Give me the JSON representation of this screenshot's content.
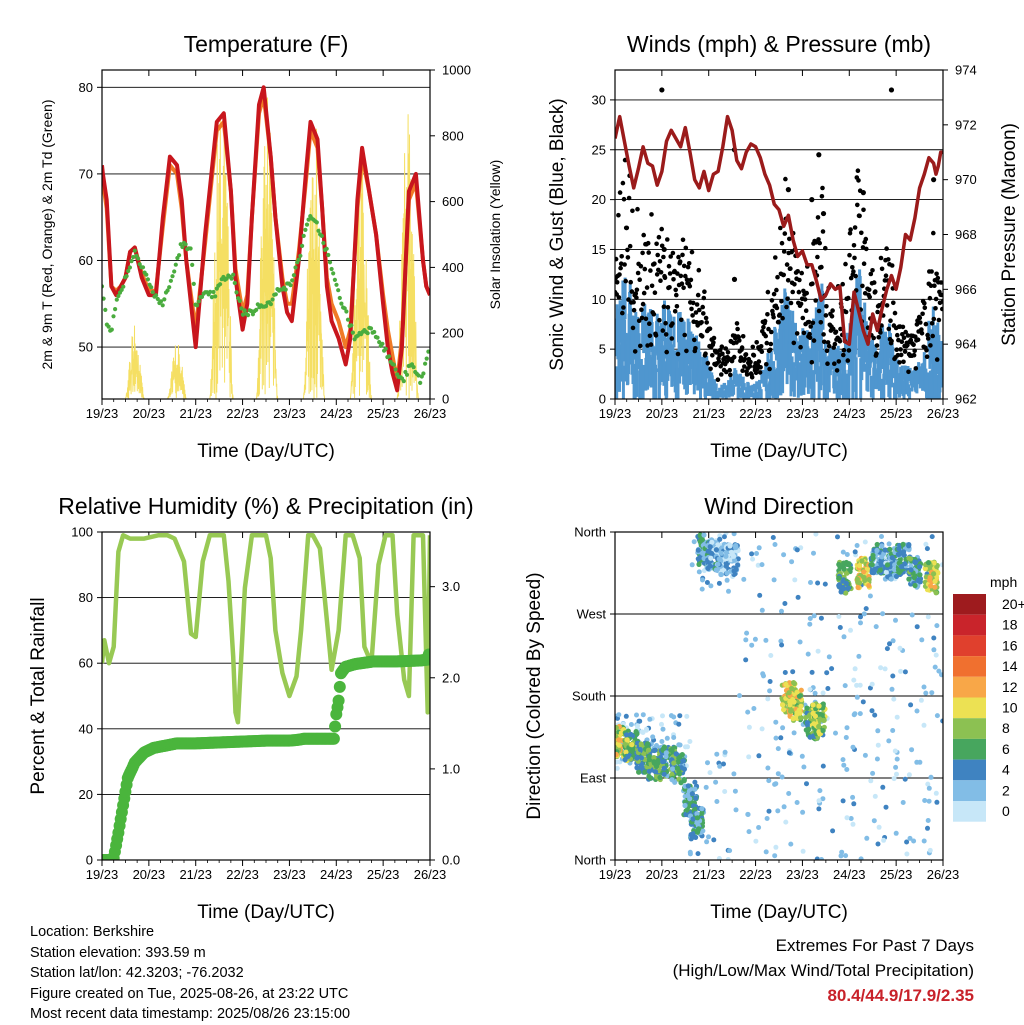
{
  "chart_data": [
    {
      "type": "line",
      "title": "Temperature (F)",
      "xlabel": "Time (Day/UTC)",
      "ylabel": "2m & 9m T (Red, Orange) & 2m Td (Green)",
      "ylabel_right": "Solar Insolation (Yellow)",
      "x_ticks": [
        "19/23",
        "20/23",
        "21/23",
        "22/23",
        "23/23",
        "24/23",
        "25/23",
        "26/23"
      ],
      "y_ticks": [
        "50",
        "60",
        "70",
        "80"
      ],
      "y2_ticks": [
        "0",
        "200",
        "400",
        "600",
        "800",
        "1000"
      ],
      "ylim": [
        44,
        82
      ],
      "y2lim": [
        0,
        1000
      ],
      "xlim": [
        0,
        7
      ],
      "grid": "horizontal",
      "colors": {
        "t2m": "#c8161d",
        "t9m": "#f07a26",
        "td": "#4aac3e",
        "solar": "#f5df63"
      },
      "series": [
        {
          "key": "t2m",
          "x": [
            0,
            0.02,
            0.1,
            0.2,
            0.3,
            0.4,
            0.5,
            0.6,
            0.7,
            0.85,
            1.0,
            1.15,
            1.3,
            1.45,
            1.6,
            1.7,
            1.8,
            1.9,
            2.0,
            2.2,
            2.45,
            2.6,
            2.75,
            2.85,
            3.0,
            3.1,
            3.2,
            3.35,
            3.45,
            3.6,
            3.7,
            3.85,
            3.95,
            4.05,
            4.2,
            4.35,
            4.45,
            4.6,
            4.7,
            4.8,
            4.9,
            5.05,
            5.2,
            5.3,
            5.45,
            5.55,
            5.7,
            5.85,
            6.0,
            6.1,
            6.2,
            6.3,
            6.4,
            6.55,
            6.7,
            6.85,
            6.92,
            7.0
          ],
          "y": [
            71,
            70,
            67,
            57,
            56,
            57,
            58,
            61,
            61.5,
            58,
            56,
            56,
            65,
            72,
            71,
            67,
            60,
            55,
            50,
            63,
            76,
            77,
            68,
            58,
            52,
            55,
            65,
            78,
            80,
            72,
            65,
            57,
            54,
            53,
            60,
            70,
            76,
            74,
            66,
            57,
            53,
            51,
            48,
            51,
            67,
            73,
            68,
            63,
            55,
            50,
            47,
            45,
            50,
            68,
            70,
            60,
            57,
            56
          ]
        },
        {
          "key": "t9m",
          "x": [
            0,
            0.02,
            0.1,
            0.2,
            0.3,
            0.4,
            0.5,
            0.6,
            0.7,
            0.85,
            1.0,
            1.15,
            1.3,
            1.45,
            1.6,
            1.7,
            1.8,
            1.9,
            2.0,
            2.2,
            2.45,
            2.6,
            2.75,
            2.85,
            3.0,
            3.1,
            3.2,
            3.35,
            3.45,
            3.6,
            3.7,
            3.85,
            3.95,
            4.05,
            4.2,
            4.35,
            4.45,
            4.6,
            4.7,
            4.8,
            4.9,
            5.05,
            5.2,
            5.3,
            5.45,
            5.55,
            5.7,
            5.85,
            6.0,
            6.1,
            6.2,
            6.3,
            6.4,
            6.55,
            6.7,
            6.85,
            6.92,
            7.0
          ],
          "y": [
            70,
            69,
            66,
            57,
            56.5,
            57,
            58,
            61,
            61.5,
            58.5,
            56.5,
            56.5,
            64,
            71,
            70,
            66,
            60,
            56,
            52,
            62,
            75,
            76,
            68,
            59,
            54,
            56,
            65,
            77,
            79,
            72,
            65,
            58,
            55,
            55,
            61,
            69,
            75,
            73,
            66,
            58,
            55,
            53,
            50,
            52,
            66,
            72,
            68,
            63,
            56,
            52,
            49,
            46,
            51,
            67,
            69,
            60,
            57,
            56
          ]
        },
        {
          "key": "td",
          "x": [
            0,
            0.1,
            0.2,
            0.3,
            0.5,
            0.7,
            0.9,
            1.1,
            1.3,
            1.5,
            1.7,
            1.9,
            2.0,
            2.2,
            2.4,
            2.6,
            2.8,
            3.0,
            3.2,
            3.4,
            3.6,
            3.8,
            4.0,
            4.2,
            4.4,
            4.6,
            4.8,
            5.0,
            5.2,
            5.4,
            5.6,
            5.8,
            6.0,
            6.2,
            6.4,
            6.6,
            6.8,
            7.0
          ],
          "y": [
            57,
            53,
            52,
            55,
            58,
            61,
            59,
            56,
            55,
            58,
            62,
            61,
            55,
            56,
            56,
            58,
            58,
            54,
            54,
            55,
            55,
            57,
            57,
            60,
            65,
            64,
            61,
            57,
            54,
            51,
            52,
            52,
            50,
            48,
            46,
            48,
            46,
            50
          ]
        },
        {
          "key": "solar",
          "x": [
            0.5,
            0.7,
            0.9,
            1.4,
            1.6,
            1.8,
            2.3,
            2.5,
            2.8,
            3.3,
            3.5,
            3.75,
            4.3,
            4.5,
            4.75,
            5.3,
            5.5,
            5.75,
            6.3,
            6.5,
            6.75
          ],
          "y": [
            0,
            240,
            0,
            0,
            180,
            0,
            0,
            980,
            0,
            0,
            950,
            0,
            0,
            900,
            0,
            0,
            780,
            0,
            0,
            970,
            0
          ]
        }
      ]
    },
    {
      "type": "scatter",
      "title": "Winds (mph) & Pressure (mb)",
      "xlabel": "Time (Day/UTC)",
      "ylabel": "Sonic Wind & Gust (Blue, Black)",
      "ylabel_right": "Station Pressure (Maroon)",
      "x_ticks": [
        "19/23",
        "20/23",
        "21/23",
        "22/23",
        "23/23",
        "24/23",
        "25/23",
        "26/23"
      ],
      "y_ticks": [
        "0",
        "5",
        "10",
        "15",
        "20",
        "25",
        "30"
      ],
      "y2_ticks": [
        "962",
        "964",
        "966",
        "968",
        "970",
        "972",
        "974"
      ],
      "ylim": [
        0,
        33
      ],
      "y2lim": [
        962,
        974
      ],
      "xlim": [
        0,
        7
      ],
      "grid": "horizontal",
      "colors": {
        "wind": "#4f96cf",
        "gust": "#000000",
        "pressure": "#9b1b1b"
      },
      "series": [
        {
          "key": "pressure",
          "x": [
            0,
            0.1,
            0.2,
            0.3,
            0.4,
            0.5,
            0.6,
            0.7,
            0.8,
            0.9,
            1.0,
            1.1,
            1.2,
            1.3,
            1.4,
            1.5,
            1.6,
            1.7,
            1.8,
            1.9,
            2.0,
            2.1,
            2.2,
            2.3,
            2.4,
            2.5,
            2.6,
            2.7,
            2.8,
            2.9,
            3.0,
            3.1,
            3.2,
            3.3,
            3.4,
            3.5,
            3.6,
            3.7,
            3.8,
            3.9,
            4.0,
            4.1,
            4.2,
            4.3,
            4.4,
            4.5,
            4.6,
            4.7,
            4.8,
            4.9,
            5.0,
            5.1,
            5.2,
            5.3,
            5.4,
            5.5,
            5.6,
            5.7,
            5.8,
            5.9,
            6.0,
            6.1,
            6.2,
            6.3,
            6.4,
            6.5,
            6.6,
            6.7,
            6.8,
            6.85,
            6.9,
            6.95,
            7.0
          ],
          "y": [
            971.5,
            972.3,
            971.4,
            970.5,
            969.7,
            970.4,
            971.2,
            970.6,
            970.5,
            969.8,
            970.3,
            971.4,
            971.8,
            971.5,
            971.2,
            971.9,
            971.0,
            970.0,
            969.7,
            970.3,
            969.6,
            970.2,
            970.3,
            971.2,
            972.3,
            971.8,
            970.7,
            970.4,
            971.0,
            971.3,
            971.2,
            970.8,
            970.2,
            969.8,
            969.1,
            968.9,
            968.3,
            968.7,
            967.8,
            967.2,
            967.4,
            966.9,
            966.9,
            966.3,
            965.6,
            965.8,
            966.2,
            966.0,
            966.1,
            964.1,
            964.0,
            965.9,
            965.2,
            964.5,
            964.0,
            965.1,
            964.5,
            965.3,
            966.0,
            966.5,
            966.0,
            966.8,
            968.0,
            967.8,
            968.6,
            969.7,
            970.2,
            970.8,
            970.6,
            970.2,
            970.5,
            971.0,
            971.0
          ]
        },
        {
          "key": "gust",
          "points": [
            [
              1.0,
              31
            ],
            [
              2.55,
              25
            ],
            [
              4.35,
              24.5
            ],
            [
              5.9,
              31
            ],
            [
              1.05,
              15
            ],
            [
              2.55,
              12
            ],
            [
              3.7,
              21
            ],
            [
              4.2,
              20
            ],
            [
              4.45,
              18.6
            ],
            [
              5.3,
              20.7
            ],
            [
              6.8,
              22
            ]
          ]
        }
      ]
    },
    {
      "type": "line",
      "title": "Relative Humidity (%) & Precipitation (in)",
      "xlabel": "Time (Day/UTC)",
      "ylabel": "Percent & Total Rainfall",
      "x_ticks": [
        "19/23",
        "20/23",
        "21/23",
        "22/23",
        "23/23",
        "24/23",
        "25/23",
        "26/23"
      ],
      "y_ticks": [
        "0",
        "20",
        "40",
        "60",
        "80",
        "100"
      ],
      "y2_ticks": [
        "0.0",
        "1.0",
        "2.0",
        "3.0"
      ],
      "ylim": [
        0,
        100
      ],
      "y2lim": [
        0,
        3.6
      ],
      "xlim": [
        0,
        7
      ],
      "grid": "horizontal",
      "colors": {
        "rh": "#98c954",
        "precip": "#4ab53c"
      },
      "series": [
        {
          "key": "rh",
          "x": [
            0,
            0.05,
            0.15,
            0.25,
            0.35,
            0.45,
            0.6,
            0.9,
            1.2,
            1.4,
            1.55,
            1.75,
            1.9,
            2.0,
            2.15,
            2.3,
            2.45,
            2.6,
            2.7,
            2.8,
            2.85,
            2.9,
            3.05,
            3.2,
            3.35,
            3.5,
            3.6,
            3.7,
            3.85,
            4.0,
            4.15,
            4.25,
            4.4,
            4.5,
            4.65,
            4.8,
            4.9,
            5.05,
            5.2,
            5.35,
            5.5,
            5.6,
            5.75,
            5.9,
            6.05,
            6.2,
            6.3,
            6.45,
            6.55,
            6.65,
            6.75,
            6.85,
            6.95,
            7.0
          ],
          "y": [
            60,
            67,
            60,
            65,
            94,
            99,
            98,
            98,
            99,
            99,
            98,
            91,
            69,
            68,
            91,
            99,
            99,
            99,
            85,
            62,
            45,
            42,
            83,
            99,
            99,
            99,
            92,
            70,
            57,
            50,
            56,
            70,
            99,
            99,
            95,
            73,
            58,
            70,
            99,
            99,
            92,
            65,
            60,
            90,
            99,
            99,
            75,
            55,
            50,
            99,
            99,
            99,
            45,
            99
          ]
        },
        {
          "key": "precip",
          "x": [
            0,
            0.15,
            0.25,
            0.35,
            0.45,
            0.55,
            0.7,
            0.9,
            1.1,
            1.3,
            1.6,
            2.0,
            2.5,
            3.0,
            3.5,
            4.0,
            4.2,
            4.3,
            4.4,
            4.95,
            5.0,
            5.05,
            5.1,
            5.2,
            5.4,
            5.8,
            6.3,
            6.8,
            6.95,
            7.0
          ],
          "y": [
            0,
            0,
            0.02,
            0.3,
            0.6,
            0.9,
            1.07,
            1.18,
            1.23,
            1.25,
            1.28,
            1.28,
            1.29,
            1.3,
            1.31,
            1.31,
            1.32,
            1.33,
            1.33,
            1.33,
            1.6,
            1.75,
            2.05,
            2.12,
            2.15,
            2.18,
            2.18,
            2.19,
            2.2,
            2.31
          ]
        }
      ]
    },
    {
      "type": "scatter",
      "title": "Wind Direction",
      "xlabel": "Time (Day/UTC)",
      "ylabel": "Direction (Colored By Speed)",
      "x_ticks": [
        "19/23",
        "20/23",
        "21/23",
        "22/23",
        "23/23",
        "24/23",
        "25/23",
        "26/23"
      ],
      "y_ticks": [
        "North",
        "East",
        "South",
        "West",
        "North"
      ],
      "ylim": [
        0,
        360
      ],
      "xlim": [
        0,
        7
      ],
      "grid": "horizontal",
      "colorbar_title": "mph",
      "colorbar_labels": [
        "20+",
        "18",
        "16",
        "14",
        "12",
        "10",
        "8",
        "6",
        "4",
        "2",
        "0"
      ],
      "colorbar_colors": [
        "#9e1b1e",
        "#c9242b",
        "#e0402d",
        "#f0702f",
        "#f8a748",
        "#ece153",
        "#8cc152",
        "#47a65e",
        "#3f83c1",
        "#82bde6",
        "#c7e7f8"
      ],
      "clusters": [
        {
          "x": 0.1,
          "dir": 130,
          "spd": 9
        },
        {
          "x": 0.35,
          "dir": 125,
          "spd": 7
        },
        {
          "x": 0.6,
          "dir": 112,
          "spd": 6
        },
        {
          "x": 0.85,
          "dir": 105,
          "spd": 6
        },
        {
          "x": 1.15,
          "dir": 108,
          "spd": 5
        },
        {
          "x": 1.35,
          "dir": 100,
          "spd": 5
        },
        {
          "x": 1.6,
          "dir": 65,
          "spd": 4
        },
        {
          "x": 1.75,
          "dir": 40,
          "spd": 4
        },
        {
          "x": 1.9,
          "dir": 340,
          "spd": 4
        },
        {
          "x": 2.1,
          "dir": 335,
          "spd": 3
        },
        {
          "x": 2.3,
          "dir": 330,
          "spd": 2
        },
        {
          "x": 2.5,
          "dir": 330,
          "spd": 2
        },
        {
          "x": 3.7,
          "dir": 178,
          "spd": 10
        },
        {
          "x": 3.85,
          "dir": 170,
          "spd": 9
        },
        {
          "x": 4.2,
          "dir": 150,
          "spd": 6
        },
        {
          "x": 4.35,
          "dir": 155,
          "spd": 8
        },
        {
          "x": 4.9,
          "dir": 310,
          "spd": 6
        },
        {
          "x": 5.3,
          "dir": 315,
          "spd": 10
        },
        {
          "x": 5.6,
          "dir": 330,
          "spd": 4
        },
        {
          "x": 5.9,
          "dir": 325,
          "spd": 3
        },
        {
          "x": 6.15,
          "dir": 330,
          "spd": 4
        },
        {
          "x": 6.4,
          "dir": 315,
          "spd": 5
        },
        {
          "x": 6.75,
          "dir": 310,
          "spd": 9
        }
      ]
    }
  ],
  "info": {
    "location": "Location: Berkshire",
    "elevation": "Station elevation: 393.59 m",
    "latlon": "Station lat/lon: 42.3203; -76.2032",
    "created": "Figure created on Tue, 2025-08-26, at 23:22 UTC",
    "recent": "Most recent data timestamp: 2025/08/26 23:15:00"
  },
  "extremes": {
    "title": "Extremes For Past 7 Days",
    "subtitle": "(High/Low/Max Wind/Total Precipitation)",
    "values": "80.4/44.9/17.9/2.35"
  }
}
